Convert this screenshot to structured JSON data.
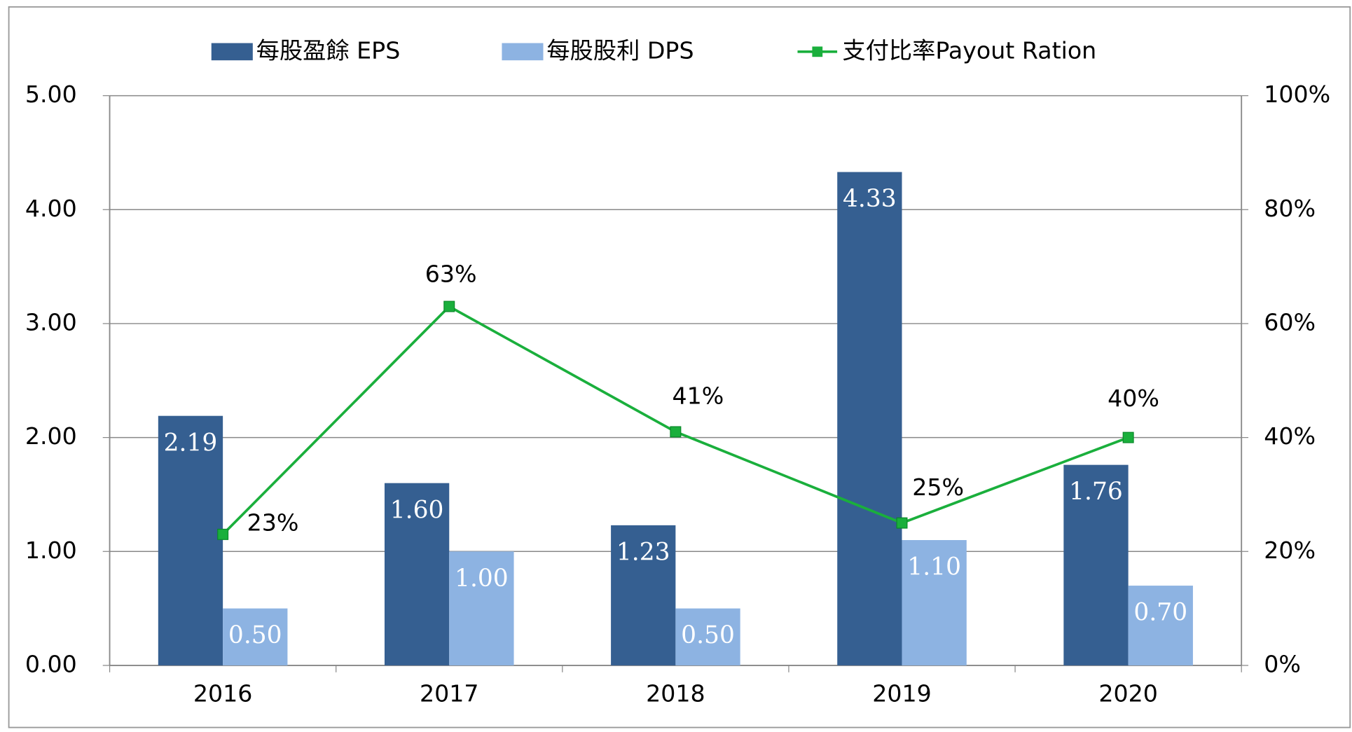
{
  "chart_data": {
    "type": "bar-line",
    "categories": [
      "2016",
      "2017",
      "2018",
      "2019",
      "2020"
    ],
    "series": [
      {
        "name": "每股盈餘 EPS",
        "color": "#355f91",
        "values": [
          2.19,
          1.6,
          1.23,
          4.33,
          1.76
        ],
        "value_labels": [
          "2.19",
          "1.60",
          "1.23",
          "4.33",
          "1.76"
        ]
      },
      {
        "name": "每股股利 DPS",
        "color": "#8db3e2",
        "values": [
          0.5,
          1.0,
          0.5,
          1.1,
          0.7
        ],
        "value_labels": [
          "0.50",
          "1.00",
          "0.50",
          "1.10",
          "0.70"
        ]
      },
      {
        "name": "支付比率Payout Ration",
        "color": "#1aaf3c",
        "type": "line",
        "axis": "y2",
        "values": [
          23,
          63,
          41,
          25,
          40
        ],
        "value_labels": [
          "23%",
          "63%",
          "41%",
          "25%",
          "40%"
        ]
      }
    ],
    "ylim": [
      0,
      5
    ],
    "yticks": [
      {
        "value": 0,
        "label": "0.00"
      },
      {
        "value": 1,
        "label": "1.00"
      },
      {
        "value": 2,
        "label": "2.00"
      },
      {
        "value": 3,
        "label": "3.00"
      },
      {
        "value": 4,
        "label": "4.00"
      },
      {
        "value": 5,
        "label": "5.00"
      }
    ],
    "y2lim": [
      0,
      100
    ],
    "y2ticks": [
      {
        "value": 0,
        "label": "0%"
      },
      {
        "value": 20,
        "label": "20%"
      },
      {
        "value": 40,
        "label": "40%"
      },
      {
        "value": 60,
        "label": "60%"
      },
      {
        "value": 80,
        "label": "80%"
      },
      {
        "value": 100,
        "label": "100%"
      }
    ],
    "grid": true,
    "legend": "top"
  }
}
